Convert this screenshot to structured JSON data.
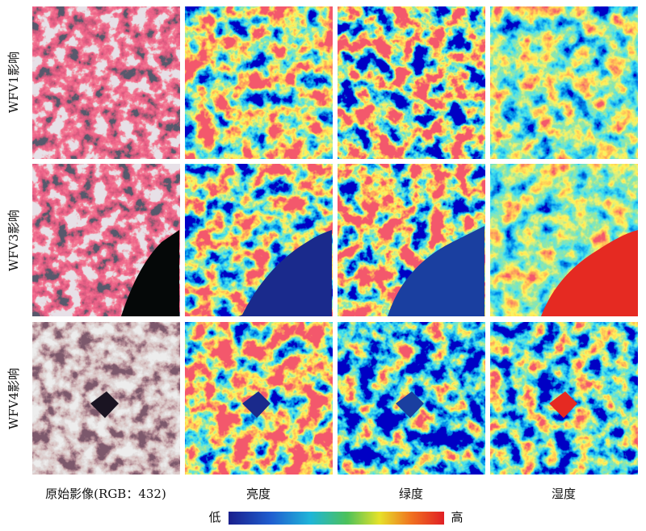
{
  "row_labels": [
    "WFV1影响",
    "WFV3影响",
    "WFV4影响"
  ],
  "column_labels": [
    "原始影像(RGB：432)",
    "亮度",
    "绿度",
    "湿度"
  ],
  "colorbar": {
    "low_label": "低",
    "high_label": "高"
  }
}
